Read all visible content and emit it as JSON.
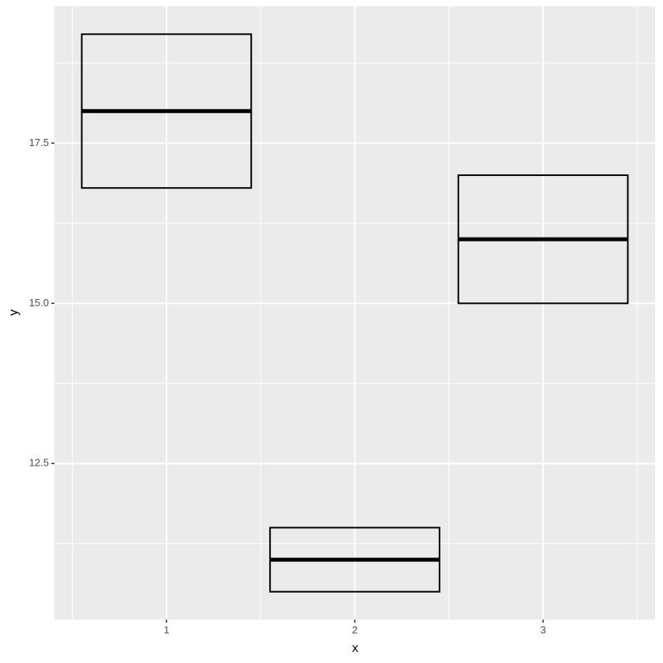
{
  "chart_data": {
    "type": "crossbar",
    "x_label": "x",
    "y_label": "y",
    "x": [
      1,
      2,
      3
    ],
    "ymin": [
      16.8,
      10.5,
      15.0
    ],
    "y": [
      18.0,
      11.0,
      16.0
    ],
    "ymax": [
      19.2,
      11.5,
      17.0
    ],
    "color": "#000000",
    "xlim": [
      0.405,
      3.595
    ],
    "ylim": [
      10.065,
      19.635
    ],
    "xticks": [
      1,
      2,
      3
    ],
    "yticks": [
      12.5,
      {
        "value": 15,
        "label": "15.0"
      },
      17.5
    ],
    "x_minor_breaks": [
      0.5,
      1.5,
      2.5,
      3.5
    ],
    "y_minor_breaks": [
      11.25,
      13.75,
      16.25,
      18.75
    ],
    "grid": true
  }
}
